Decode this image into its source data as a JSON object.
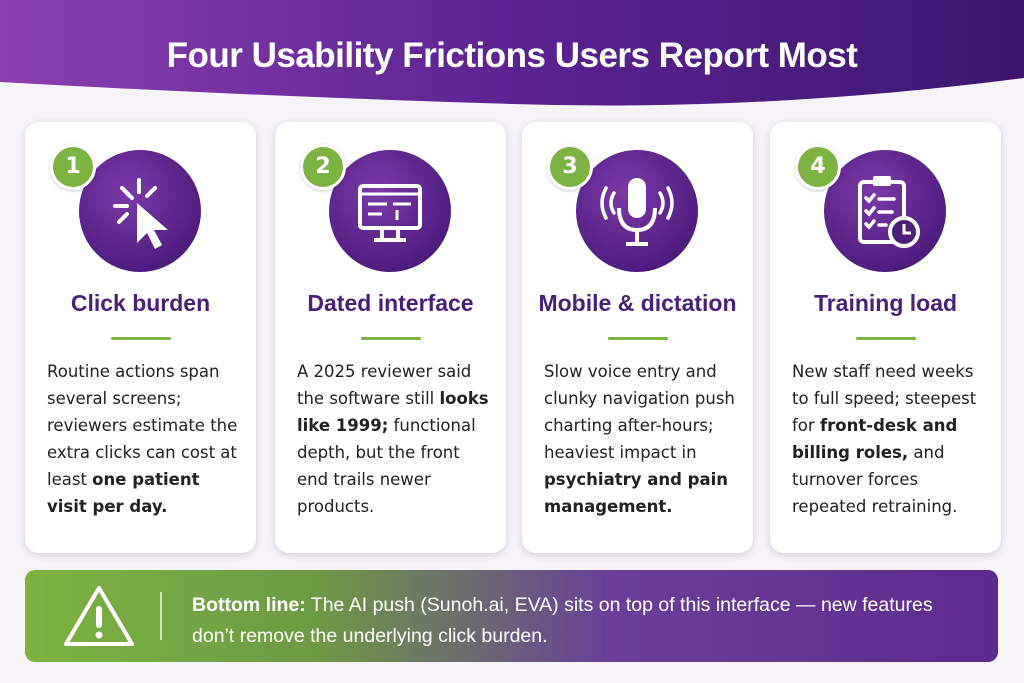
{
  "header": {
    "title": "Four Usability Frictions Users Report Most"
  },
  "cards": [
    {
      "number": "1",
      "title": "Click burden",
      "body": [
        "Routine actions span several screens; reviewers estimate the extra clicks can cost at least ",
        "one patient visit per day."
      ]
    },
    {
      "number": "2",
      "title": "Dated interface",
      "body": [
        "A 2025 reviewer said the software still ",
        "looks like 1999;",
        " functional depth, but the front end trails newer products."
      ]
    },
    {
      "number": "3",
      "title": "Mobile & dictation",
      "body": [
        "Slow voice entry and clunky navigation push charting after-hours; heaviest impact in ",
        "psychiatry and pain management."
      ]
    },
    {
      "number": "4",
      "title": "Training load",
      "body": [
        "New staff need weeks to full speed; steepest for ",
        "front-desk and billing roles,",
        " and turnover forces repeated retraining."
      ]
    }
  ],
  "bottom": {
    "label": "Bottom line:",
    "text": " The AI push (Sunoh.ai, EVA) sits on top of this interface — new features don’t remove the underlying click burden."
  }
}
